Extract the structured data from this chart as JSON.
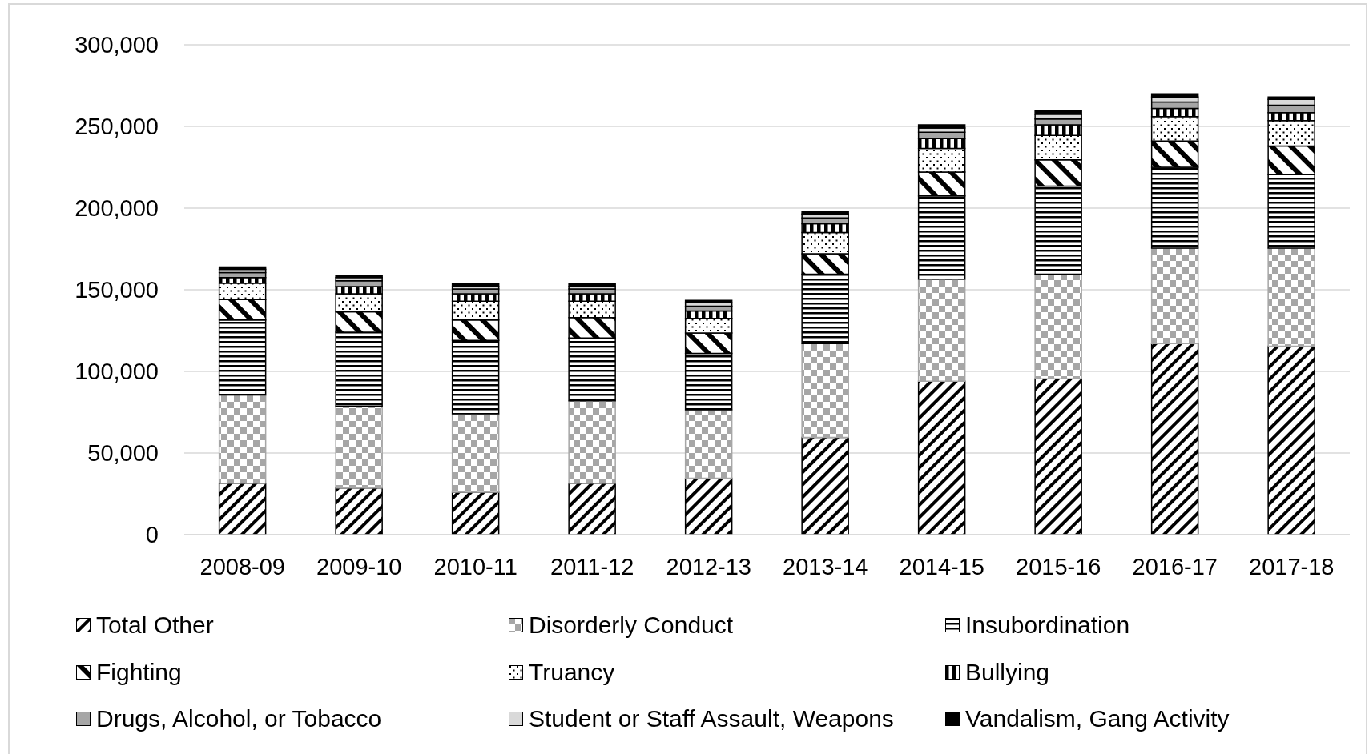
{
  "chart_data": {
    "type": "bar",
    "stacked": true,
    "categories": [
      "2008-09",
      "2009-10",
      "2010-11",
      "2011-12",
      "2012-13",
      "2013-14",
      "2014-15",
      "2015-16",
      "2016-17",
      "2017-18"
    ],
    "series": [
      {
        "name": "Total Other",
        "color": "#000000",
        "values": [
          31500,
          28500,
          26000,
          31500,
          34500,
          59500,
          94000,
          95500,
          117000,
          115500
        ]
      },
      {
        "name": "Disorderly Conduct",
        "color": "#a6a6a6",
        "values": [
          54000,
          50000,
          48000,
          50500,
          42000,
          57500,
          62500,
          64000,
          58500,
          60000
        ]
      },
      {
        "name": "Insubordination",
        "color": "#000000",
        "values": [
          46000,
          45500,
          45000,
          38500,
          34500,
          42500,
          51000,
          54000,
          49500,
          45000
        ]
      },
      {
        "name": "Fighting",
        "color": "#000000",
        "values": [
          12500,
          12500,
          12500,
          12500,
          12500,
          12500,
          14500,
          16000,
          16000,
          17500
        ]
      },
      {
        "name": "Truancy",
        "color": "#000000",
        "values": [
          10000,
          11000,
          11500,
          10000,
          9000,
          13000,
          14500,
          15000,
          15000,
          15500
        ]
      },
      {
        "name": "Bullying",
        "color": "#000000",
        "values": [
          3500,
          4500,
          4500,
          4500,
          4500,
          5500,
          6000,
          6500,
          5000,
          5000
        ]
      },
      {
        "name": "Drugs, Alcohol, or Tobacco",
        "color": "#a6a6a6",
        "values": [
          3000,
          3500,
          3000,
          3000,
          3000,
          3500,
          4000,
          3500,
          4000,
          4500
        ]
      },
      {
        "name": "Student or Staff Assault, Weapons",
        "color": "#d9d9d9",
        "values": [
          2000,
          2000,
          1500,
          1500,
          2000,
          2500,
          2500,
          3000,
          3000,
          3500
        ]
      },
      {
        "name": "Vandalism, Gang Activity",
        "color": "#000000",
        "values": [
          1500,
          1500,
          1500,
          1500,
          1500,
          1500,
          2000,
          2000,
          2000,
          1500
        ]
      }
    ],
    "ylim": [
      0,
      300000
    ],
    "yticks": [
      {
        "value": 0,
        "label": "0"
      },
      {
        "value": 50000,
        "label": "50,000"
      },
      {
        "value": 100000,
        "label": "100,000"
      },
      {
        "value": 150000,
        "label": "150,000"
      },
      {
        "value": 200000,
        "label": "200,000"
      },
      {
        "value": 250000,
        "label": "250,000"
      },
      {
        "value": 300000,
        "label": "300,000"
      }
    ],
    "grid": "y",
    "legend": "bottom"
  }
}
